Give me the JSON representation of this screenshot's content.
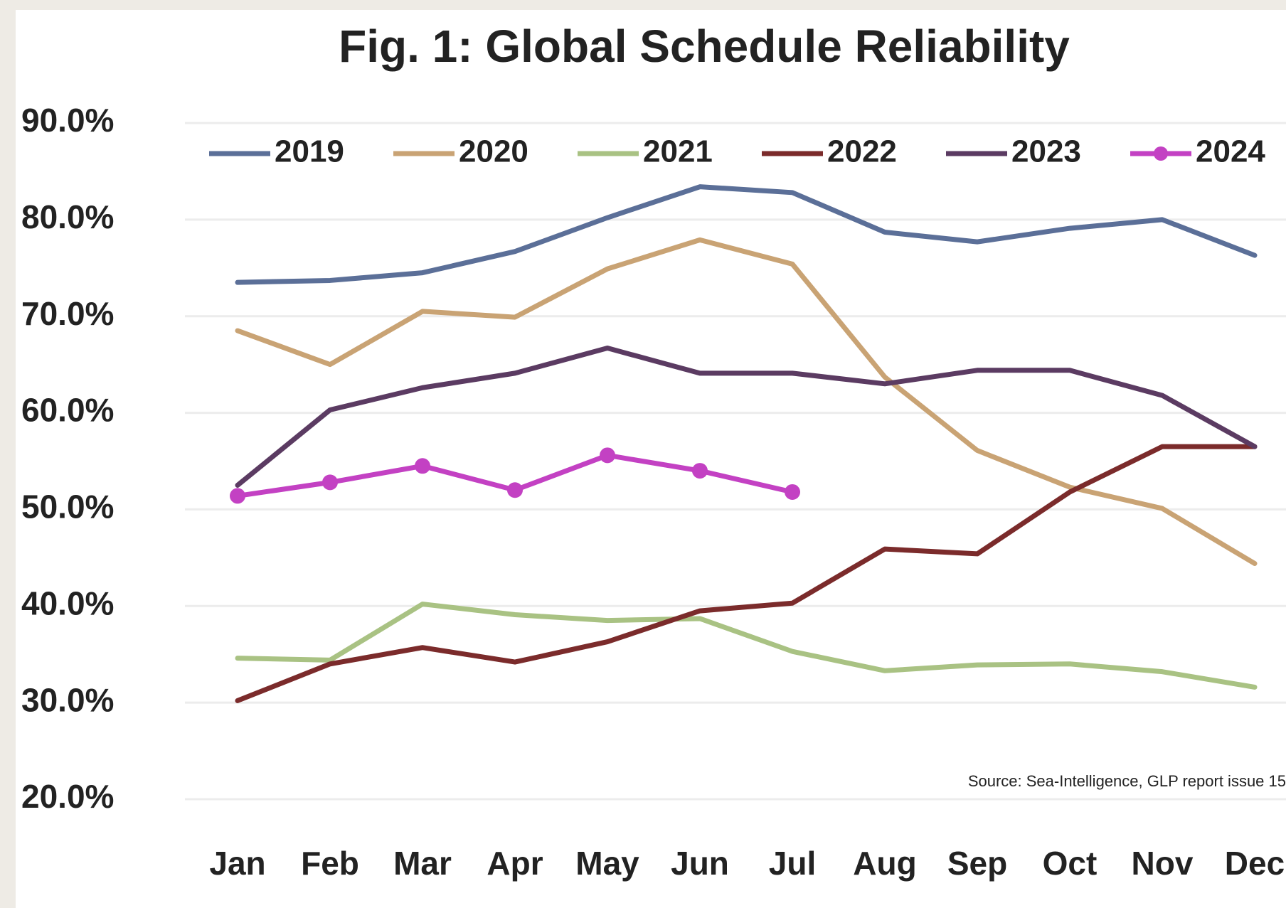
{
  "chart_data": {
    "type": "line",
    "title": "Fig. 1: Global Schedule Reliability",
    "annotation": "Source: Sea-Intelligence, GLP report issue 15",
    "categories": [
      "Jan",
      "Feb",
      "Mar",
      "Apr",
      "May",
      "Jun",
      "Jul",
      "Aug",
      "Sep",
      "Oct",
      "Nov",
      "Dec"
    ],
    "series": [
      {
        "name": "2019",
        "color": "#5b6f98",
        "values": [
          73.5,
          73.7,
          74.5,
          76.7,
          80.2,
          83.4,
          82.8,
          78.7,
          77.7,
          79.1,
          80.0,
          76.3
        ]
      },
      {
        "name": "2020",
        "color": "#c9a374",
        "values": [
          68.5,
          65.0,
          70.5,
          69.9,
          74.9,
          77.9,
          75.4,
          63.7,
          56.1,
          52.3,
          50.1,
          44.4
        ]
      },
      {
        "name": "2021",
        "color": "#a9c283",
        "values": [
          34.6,
          34.4,
          40.2,
          39.1,
          38.5,
          38.7,
          35.3,
          33.3,
          33.9,
          34.0,
          33.2,
          31.6
        ]
      },
      {
        "name": "2022",
        "color": "#7b2b2b",
        "values": [
          30.2,
          34.0,
          35.7,
          34.2,
          36.3,
          39.5,
          40.3,
          45.9,
          45.4,
          51.8,
          56.5,
          56.5
        ]
      },
      {
        "name": "2023",
        "color": "#5b3b62",
        "values": [
          52.5,
          60.3,
          62.6,
          64.1,
          66.7,
          64.1,
          64.1,
          63.0,
          64.4,
          64.4,
          61.8,
          56.5
        ]
      },
      {
        "name": "2024",
        "color": "#c341c3",
        "markers": true,
        "values": [
          51.4,
          52.8,
          54.5,
          52.0,
          55.6,
          54.0,
          51.8,
          null,
          null,
          null,
          null,
          null
        ]
      }
    ],
    "ylim": [
      20,
      90
    ],
    "yticks": [
      {
        "value": 20,
        "label": "20.0%"
      },
      {
        "value": 30,
        "label": "30.0%"
      },
      {
        "value": 40,
        "label": "40.0%"
      },
      {
        "value": 50,
        "label": "50.0%"
      },
      {
        "value": 60,
        "label": "60.0%"
      },
      {
        "value": 70,
        "label": "70.0%"
      },
      {
        "value": 80,
        "label": "80.0%"
      },
      {
        "value": 90,
        "label": "90.0%"
      }
    ],
    "grid": true,
    "legend": "top"
  }
}
